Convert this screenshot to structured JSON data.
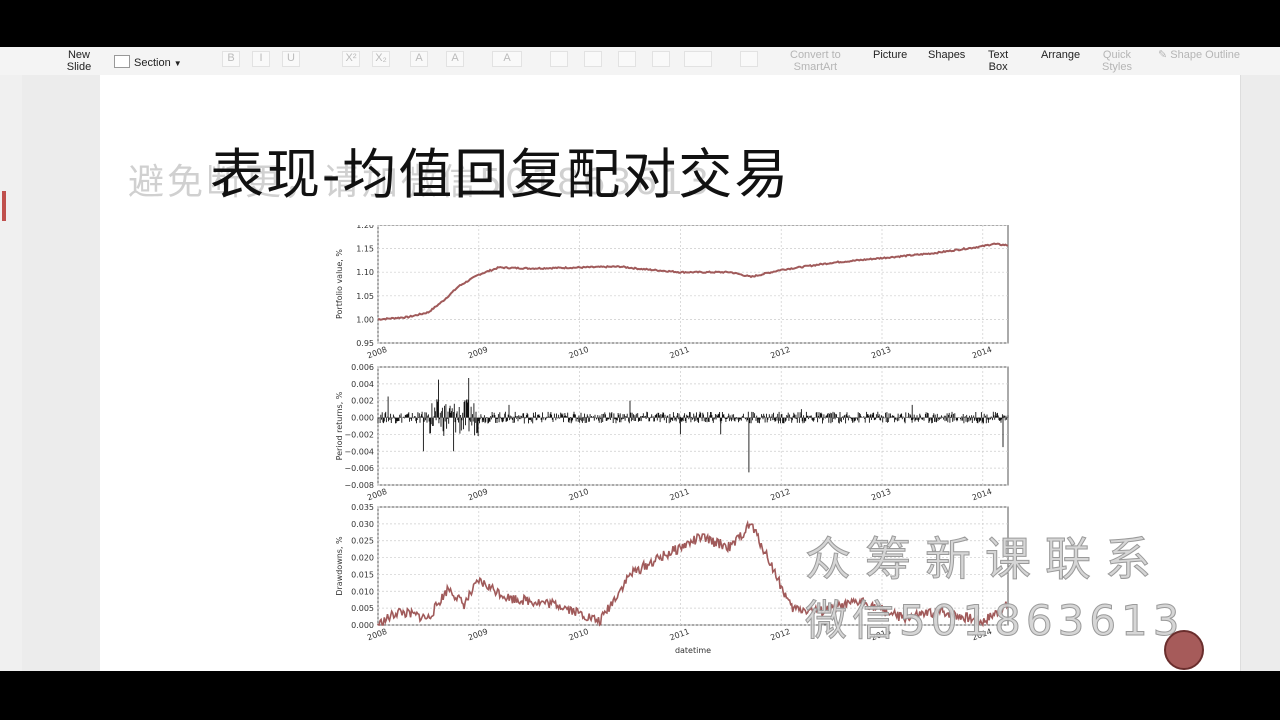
{
  "ribbon": {
    "new_slide": "New\nSlide",
    "section": "Section",
    "convert_smartart": "Convert to\nSmartArt",
    "picture": "Picture",
    "shapes": "Shapes",
    "text_box": "Text\nBox",
    "arrange": "Arrange",
    "quick_styles": "Quick\nStyles",
    "shape_outline": "Shape Outline",
    "fmt_labels": [
      "B",
      "I",
      "U",
      "X²",
      "X₂",
      "A",
      "A",
      "A"
    ]
  },
  "slide": {
    "title": "表现-均值回复配对交易",
    "watermark_top": "避免断更，请加微信501863613",
    "watermark_right_1": "众筹新课联系",
    "watermark_right_2": "微信501863613"
  },
  "chart_data": [
    {
      "type": "line",
      "ylabel": "Portfolio value, %",
      "ylim": [
        0.95,
        1.2
      ],
      "yticks": [
        "0.95",
        "1.00",
        "1.05",
        "1.10",
        "1.15",
        "1.20"
      ],
      "xticks": [
        "2008",
        "2009",
        "2010",
        "2011",
        "2012",
        "2013",
        "2014"
      ],
      "x": [
        2008.0,
        2008.3,
        2008.5,
        2008.65,
        2008.8,
        2009.0,
        2009.2,
        2009.5,
        2010.0,
        2010.4,
        2010.6,
        2011.0,
        2011.5,
        2011.7,
        2012.0,
        2012.5,
        2013.0,
        2013.5,
        2014.0,
        2014.1,
        2014.25
      ],
      "series": [
        {
          "values": [
            1.0,
            1.005,
            1.015,
            1.04,
            1.07,
            1.095,
            1.11,
            1.108,
            1.11,
            1.112,
            1.107,
            1.1,
            1.1,
            1.09,
            1.105,
            1.12,
            1.13,
            1.14,
            1.155,
            1.16,
            1.157
          ]
        }
      ],
      "color": "#a05a5a"
    },
    {
      "type": "line",
      "ylabel": "Period returns, %",
      "ylim": [
        -0.008,
        0.006
      ],
      "yticks": [
        "−0.008",
        "−0.006",
        "−0.004",
        "−0.002",
        "0.000",
        "0.002",
        "0.004",
        "0.006"
      ],
      "xticks": [
        "2008",
        "2009",
        "2010",
        "2011",
        "2012",
        "2013",
        "2014"
      ],
      "x": [
        2008.1,
        2008.45,
        2008.6,
        2008.75,
        2008.9,
        2009.3,
        2010.5,
        2011.0,
        2011.4,
        2011.68,
        2012.2,
        2013.3,
        2014.2
      ],
      "series": [
        {
          "values": [
            0.0025,
            -0.004,
            0.0045,
            -0.004,
            0.0047,
            0.0015,
            0.002,
            -0.002,
            -0.002,
            -0.0065,
            0.001,
            0.0015,
            -0.0035
          ]
        }
      ],
      "color": "#111111"
    },
    {
      "type": "area",
      "xlabel": "datetime",
      "ylabel": "Drawdowns, %",
      "ylim": [
        0.0,
        0.035
      ],
      "yticks": [
        "0.000",
        "0.005",
        "0.010",
        "0.015",
        "0.020",
        "0.025",
        "0.030",
        "0.035"
      ],
      "xticks": [
        "2008",
        "2009",
        "2010",
        "2011",
        "2012",
        "2013",
        "2014"
      ],
      "x": [
        2008.0,
        2008.2,
        2008.5,
        2008.7,
        2008.85,
        2009.0,
        2009.3,
        2009.8,
        2010.2,
        2010.5,
        2010.8,
        2011.2,
        2011.5,
        2011.7,
        2011.9,
        2012.1,
        2012.4,
        2012.8,
        2013.2,
        2013.6,
        2014.0,
        2014.25
      ],
      "series": [
        {
          "values": [
            0.0,
            0.004,
            0.002,
            0.011,
            0.006,
            0.013,
            0.008,
            0.006,
            0.001,
            0.015,
            0.02,
            0.026,
            0.023,
            0.03,
            0.018,
            0.005,
            0.004,
            0.007,
            0.002,
            0.004,
            0.001,
            0.006
          ]
        }
      ],
      "color": "#a05a5a"
    }
  ]
}
